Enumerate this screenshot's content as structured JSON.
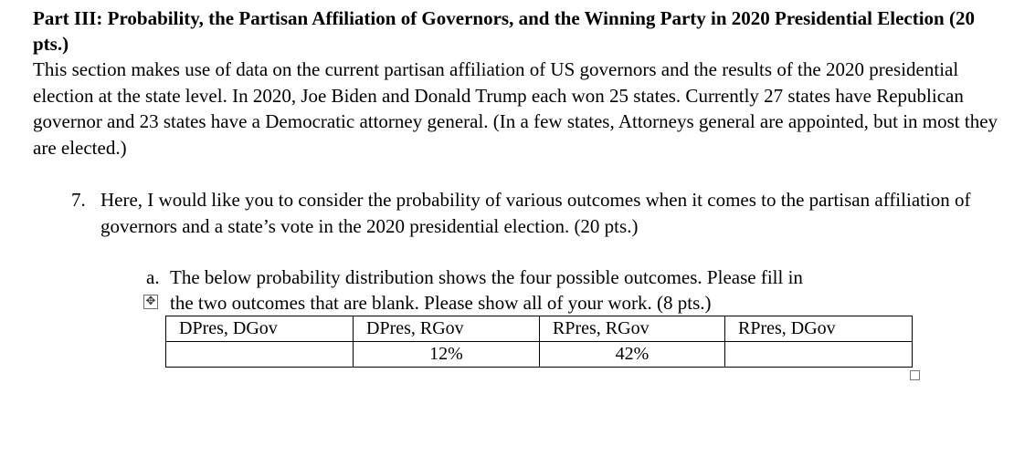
{
  "heading": "Part III: Probability, the Partisan Affiliation of Governors, and the Winning Party in 2020 Presidential Election (20 pts.)",
  "intro": "This section makes use of data on the current partisan affiliation of US governors and the results of the 2020 presidential election at the state level. In 2020, Joe Biden and Donald Trump each won 25 states.  Currently 27 states have Republican governor and 23 states have a Democratic attorney general. (In a few states, Attorneys general are appointed, but in most they are elected.)",
  "question": {
    "number": "7.",
    "text": "Here, I would like you to consider the probability of various outcomes when it comes to the partisan affiliation of governors and a state’s vote in the 2020 presidential election. (20 pts.)",
    "part_a": {
      "letter": "a.",
      "text_line1": "The below probability distribution shows the four possible outcomes. Please fill in",
      "text_line2": "the two outcomes that are blank. Please show all of your work. (8 pts.)"
    }
  },
  "table": {
    "headers": [
      "DPres, DGov",
      "DPres, RGov",
      "RPres, RGov",
      "RPres, DGov"
    ],
    "values": [
      "",
      "12%",
      "42%",
      ""
    ]
  },
  "icons": {
    "move_handle": "table-move-handle-icon",
    "resize_handle": "table-resize-handle-icon"
  }
}
